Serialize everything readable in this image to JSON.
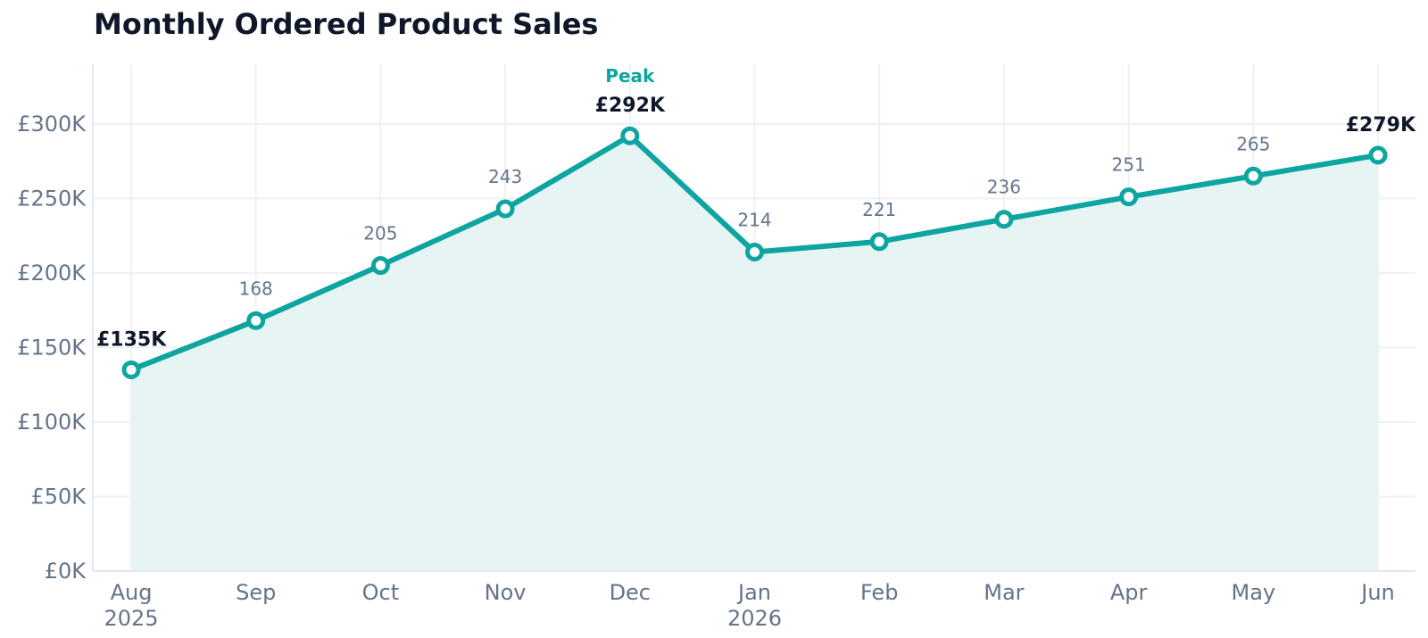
{
  "title": "Monthly Ordered Product Sales",
  "colors": {
    "line": "#0ea5a0",
    "area": "#e6f5f4",
    "grid": "#eef1f4",
    "text": "#0f172a",
    "muted": "#64748b"
  },
  "chart_data": {
    "type": "area",
    "title": "Monthly Ordered Product Sales",
    "categories": [
      "Aug 2025",
      "Sep",
      "Oct",
      "Nov",
      "Dec",
      "Jan 2026",
      "Feb",
      "Mar",
      "Apr",
      "May",
      "Jun"
    ],
    "x_tick_labels": [
      [
        "Aug",
        "2025"
      ],
      [
        "Sep"
      ],
      [
        "Oct"
      ],
      [
        "Nov"
      ],
      [
        "Dec"
      ],
      [
        "Jan",
        "2026"
      ],
      [
        "Feb"
      ],
      [
        "Mar"
      ],
      [
        "Apr"
      ],
      [
        "May"
      ],
      [
        "Jun"
      ]
    ],
    "series": [
      {
        "values": [
          135,
          168,
          205,
          243,
          292,
          214,
          221,
          236,
          251,
          265,
          279
        ]
      }
    ],
    "point_labels": [
      "£135K",
      "168",
      "205",
      "243",
      "£292K",
      "214",
      "221",
      "236",
      "251",
      "265",
      "£279K"
    ],
    "highlight_indices": [
      0,
      4,
      10
    ],
    "peak_index": 4,
    "peak_text": "Peak",
    "y_unit": "thousands GBP",
    "ylim": [
      0,
      340
    ],
    "y_ticks": [
      0,
      50,
      100,
      150,
      200,
      250,
      300
    ],
    "y_tick_labels": [
      "£0K",
      "£50K",
      "£100K",
      "£150K",
      "£200K",
      "£250K",
      "£300K"
    ],
    "grid": true,
    "xlabel": "",
    "ylabel": ""
  }
}
